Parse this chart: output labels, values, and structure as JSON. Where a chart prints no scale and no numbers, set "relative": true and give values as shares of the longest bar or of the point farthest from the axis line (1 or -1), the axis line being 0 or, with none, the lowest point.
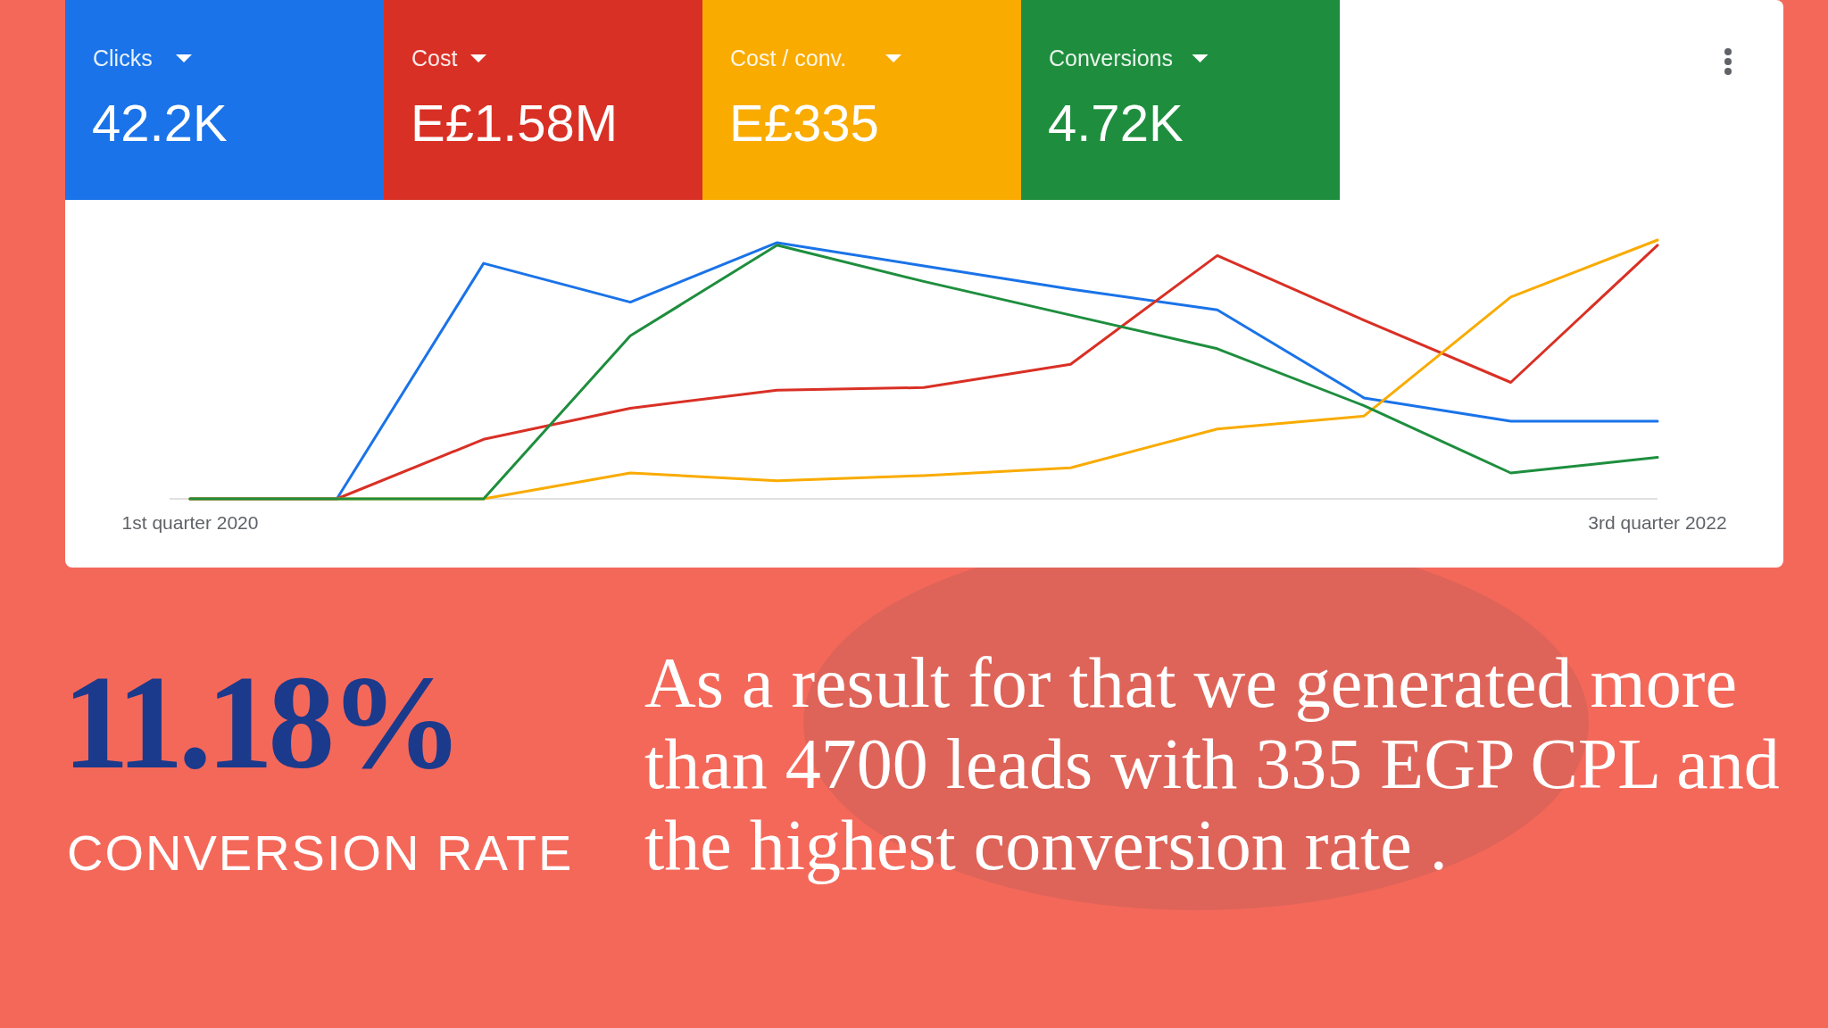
{
  "chart_data": {
    "type": "line",
    "relative": true,
    "categories": [
      "1st quarter 2020",
      null,
      null,
      null,
      null,
      null,
      null,
      null,
      null,
      null,
      "3rd quarter 2022"
    ],
    "series": [
      {
        "color": "#1a73e8",
        "values": [
          0,
          0,
          0.91,
          0.76,
          0.99,
          0.9,
          0.81,
          0.73,
          0.39,
          0.3,
          0.3
        ]
      },
      {
        "color": "#d93025",
        "values": [
          0,
          0,
          0.23,
          0.35,
          0.42,
          0.43,
          0.52,
          0.94,
          0.69,
          0.45,
          0.98
        ]
      },
      {
        "color": "#f9ab00",
        "values": [
          0,
          0,
          0,
          0.1,
          0.07,
          0.09,
          0.12,
          0.27,
          0.32,
          0.78,
          1
        ]
      },
      {
        "color": "#1e8e3e",
        "values": [
          0,
          0,
          0,
          0.63,
          0.98,
          0.84,
          0.71,
          0.58,
          0.36,
          0.1,
          0.16
        ]
      }
    ],
    "annotations": [
      "Clicks",
      "42.2K",
      "Cost",
      "E£1.58M",
      "Cost / conv.",
      "E£335",
      "Conversions",
      "4.72K",
      "11.18%",
      "CONVERSION RATE",
      "As a result for that we generated more than 4700 leads with 335 EGP CPL and the highest conversion rate ."
    ]
  }
}
